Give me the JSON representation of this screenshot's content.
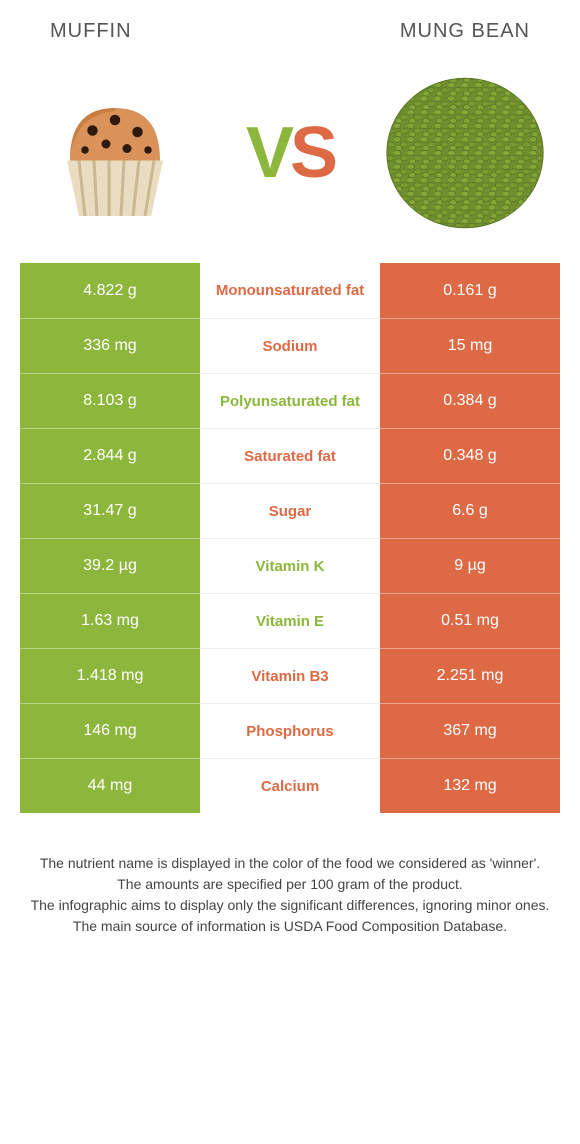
{
  "header": {
    "left_title": "Muffin",
    "right_title": "Mung bean"
  },
  "vs": {
    "v": "V",
    "s": "S"
  },
  "colors": {
    "left": "#8cb73c",
    "right": "#de6a45",
    "muffin_body": "#d98c3a",
    "muffin_wrap": "#e8d4b0",
    "muffin_chip": "#3a2515",
    "bean_fill": "#6b8e23",
    "bean_dark": "#556b1f"
  },
  "rows": [
    {
      "left": "4.822 g",
      "label": "Monounsaturated fat",
      "right": "0.161 g",
      "winner": "orange"
    },
    {
      "left": "336 mg",
      "label": "Sodium",
      "right": "15 mg",
      "winner": "orange"
    },
    {
      "left": "8.103 g",
      "label": "Polyunsaturated fat",
      "right": "0.384 g",
      "winner": "green"
    },
    {
      "left": "2.844 g",
      "label": "Saturated fat",
      "right": "0.348 g",
      "winner": "orange"
    },
    {
      "left": "31.47 g",
      "label": "Sugar",
      "right": "6.6 g",
      "winner": "orange"
    },
    {
      "left": "39.2 µg",
      "label": "Vitamin K",
      "right": "9 µg",
      "winner": "green"
    },
    {
      "left": "1.63 mg",
      "label": "Vitamin E",
      "right": "0.51 mg",
      "winner": "green"
    },
    {
      "left": "1.418 mg",
      "label": "Vitamin B3",
      "right": "2.251 mg",
      "winner": "orange"
    },
    {
      "left": "146 mg",
      "label": "Phosphorus",
      "right": "367 mg",
      "winner": "orange"
    },
    {
      "left": "44 mg",
      "label": "Calcium",
      "right": "132 mg",
      "winner": "orange"
    }
  ],
  "footnote": {
    "line1": "The nutrient name is displayed in the color of the food we considered as 'winner'.",
    "line2": "The amounts are specified per 100 gram of the product.",
    "line3": "The infographic aims to display only the significant differences, ignoring minor ones.",
    "line4": "The main source of information is USDA Food Composition Database."
  }
}
